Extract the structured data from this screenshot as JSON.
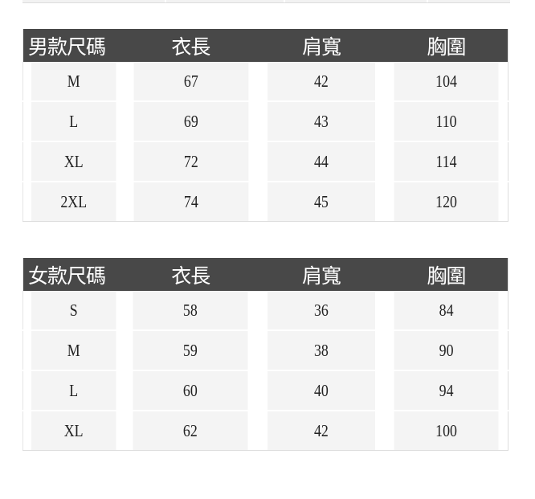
{
  "tables": [
    {
      "headers": [
        "男款尺碼",
        "衣長",
        "肩寬",
        "胸圍"
      ],
      "rows": [
        [
          "M",
          "67",
          "42",
          "104"
        ],
        [
          "L",
          "69",
          "43",
          "110"
        ],
        [
          "XL",
          "72",
          "44",
          "114"
        ],
        [
          "2XL",
          "74",
          "45",
          "120"
        ]
      ]
    },
    {
      "headers": [
        "女款尺碼",
        "衣長",
        "肩寬",
        "胸圍"
      ],
      "rows": [
        [
          "S",
          "58",
          "36",
          "84"
        ],
        [
          "M",
          "59",
          "38",
          "90"
        ],
        [
          "L",
          "60",
          "40",
          "94"
        ],
        [
          "XL",
          "62",
          "42",
          "100"
        ]
      ]
    }
  ],
  "colors": {
    "header_bg": "#484848",
    "cell_bg": "#f4f4f4"
  }
}
